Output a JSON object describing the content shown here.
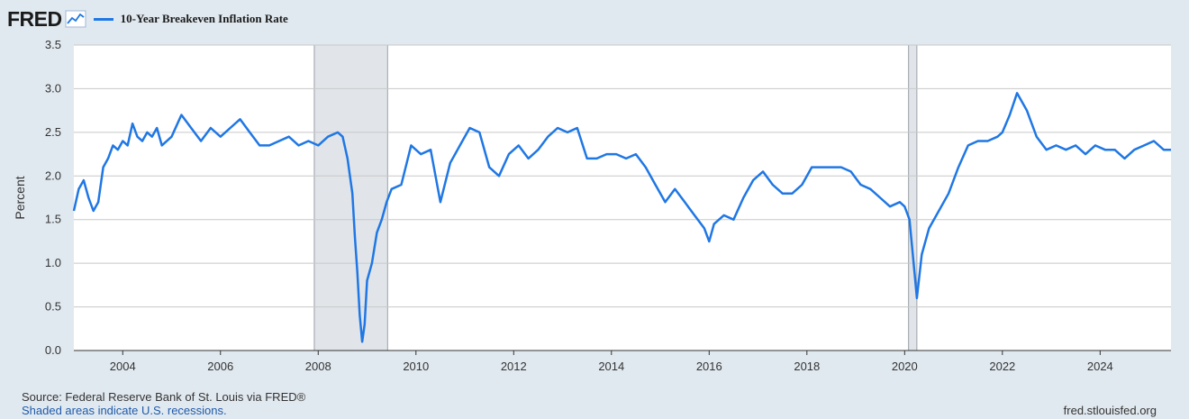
{
  "header": {
    "logo_text": "FRED",
    "logo_icon": "line-chart-icon",
    "series_label": "10-Year Breakeven Inflation Rate"
  },
  "footer": {
    "source": "Source: Federal Reserve Bank of St. Louis via FRED®",
    "recession_note": "Shaded areas indicate U.S. recessions.",
    "site": "fred.stlouisfed.org"
  },
  "colors": {
    "line": "#1f77e4",
    "background": "#e1e9f0",
    "plot_background": "#ffffff",
    "recession": "#e1e5ea",
    "grid": "#c8c8c8"
  },
  "chart_data": {
    "type": "line",
    "title": "",
    "xlabel": "",
    "ylabel": "Percent",
    "xlim": [
      2003.0,
      2025.45
    ],
    "ylim": [
      0,
      3.5
    ],
    "yticks": [
      0.0,
      0.5,
      1.0,
      1.5,
      2.0,
      2.5,
      3.0,
      3.5
    ],
    "ytick_labels": [
      "0.0",
      "0.5",
      "1.0",
      "1.5",
      "2.0",
      "2.5",
      "3.0",
      "3.5"
    ],
    "xticks": [
      2004,
      2006,
      2008,
      2010,
      2012,
      2014,
      2016,
      2018,
      2020,
      2022,
      2024
    ],
    "xtick_labels": [
      "2004",
      "2006",
      "2008",
      "2010",
      "2012",
      "2014",
      "2016",
      "2018",
      "2020",
      "2022",
      "2024"
    ],
    "grid": true,
    "legend": "top-left",
    "recessions": [
      {
        "start": 2007.92,
        "end": 2009.42
      },
      {
        "start": 2020.08,
        "end": 2020.25
      }
    ],
    "series": [
      {
        "name": "10-Year Breakeven Inflation Rate",
        "x": [
          2003.0,
          2003.1,
          2003.2,
          2003.3,
          2003.4,
          2003.5,
          2003.6,
          2003.7,
          2003.8,
          2003.9,
          2004.0,
          2004.1,
          2004.2,
          2004.3,
          2004.4,
          2004.5,
          2004.6,
          2004.7,
          2004.8,
          2005.0,
          2005.2,
          2005.4,
          2005.6,
          2005.8,
          2006.0,
          2006.2,
          2006.4,
          2006.6,
          2006.8,
          2007.0,
          2007.2,
          2007.4,
          2007.6,
          2007.8,
          2008.0,
          2008.2,
          2008.4,
          2008.5,
          2008.6,
          2008.7,
          2008.75,
          2008.8,
          2008.85,
          2008.9,
          2008.95,
          2009.0,
          2009.1,
          2009.2,
          2009.3,
          2009.4,
          2009.5,
          2009.7,
          2009.9,
          2010.1,
          2010.3,
          2010.5,
          2010.7,
          2010.9,
          2011.1,
          2011.3,
          2011.5,
          2011.7,
          2011.9,
          2012.1,
          2012.3,
          2012.5,
          2012.7,
          2012.9,
          2013.1,
          2013.3,
          2013.5,
          2013.7,
          2013.9,
          2014.1,
          2014.3,
          2014.5,
          2014.7,
          2014.9,
          2015.1,
          2015.3,
          2015.5,
          2015.7,
          2015.9,
          2016.0,
          2016.1,
          2016.3,
          2016.5,
          2016.7,
          2016.9,
          2017.1,
          2017.3,
          2017.5,
          2017.7,
          2017.9,
          2018.1,
          2018.3,
          2018.5,
          2018.7,
          2018.9,
          2019.1,
          2019.3,
          2019.5,
          2019.7,
          2019.9,
          2020.0,
          2020.1,
          2020.2,
          2020.25,
          2020.35,
          2020.5,
          2020.7,
          2020.9,
          2021.1,
          2021.3,
          2021.5,
          2021.7,
          2021.9,
          2022.0,
          2022.15,
          2022.3,
          2022.5,
          2022.7,
          2022.9,
          2023.1,
          2023.3,
          2023.5,
          2023.7,
          2023.9,
          2024.1,
          2024.3,
          2024.5,
          2024.7,
          2024.9,
          2025.1,
          2025.3,
          2025.45
        ],
        "values": [
          1.6,
          1.85,
          1.95,
          1.75,
          1.6,
          1.7,
          2.1,
          2.2,
          2.35,
          2.3,
          2.4,
          2.35,
          2.6,
          2.45,
          2.4,
          2.5,
          2.45,
          2.55,
          2.35,
          2.45,
          2.7,
          2.55,
          2.4,
          2.55,
          2.45,
          2.55,
          2.65,
          2.5,
          2.35,
          2.35,
          2.4,
          2.45,
          2.35,
          2.4,
          2.35,
          2.45,
          2.5,
          2.45,
          2.2,
          1.8,
          1.3,
          0.9,
          0.4,
          0.1,
          0.3,
          0.8,
          1.0,
          1.35,
          1.5,
          1.7,
          1.85,
          1.9,
          2.35,
          2.25,
          2.3,
          1.7,
          2.15,
          2.35,
          2.55,
          2.5,
          2.1,
          2.0,
          2.25,
          2.35,
          2.2,
          2.3,
          2.45,
          2.55,
          2.5,
          2.55,
          2.2,
          2.2,
          2.25,
          2.25,
          2.2,
          2.25,
          2.1,
          1.9,
          1.7,
          1.85,
          1.7,
          1.55,
          1.4,
          1.25,
          1.45,
          1.55,
          1.5,
          1.75,
          1.95,
          2.05,
          1.9,
          1.8,
          1.8,
          1.9,
          2.1,
          2.1,
          2.1,
          2.1,
          2.05,
          1.9,
          1.85,
          1.75,
          1.65,
          1.7,
          1.65,
          1.5,
          0.9,
          0.6,
          1.1,
          1.4,
          1.6,
          1.8,
          2.1,
          2.35,
          2.4,
          2.4,
          2.45,
          2.5,
          2.7,
          2.95,
          2.75,
          2.45,
          2.3,
          2.35,
          2.3,
          2.35,
          2.25,
          2.35,
          2.3,
          2.3,
          2.2,
          2.3,
          2.35,
          2.4,
          2.3,
          2.3
        ]
      }
    ]
  }
}
